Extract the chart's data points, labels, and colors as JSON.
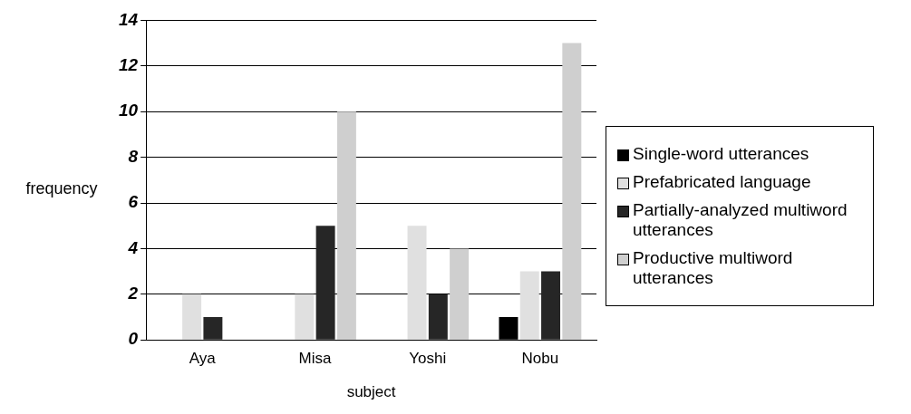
{
  "chart_data": {
    "type": "bar",
    "xlabel": "subject",
    "ylabel": "frequency",
    "categories": [
      "Aya",
      "Misa",
      "Yoshi",
      "Nobu"
    ],
    "series": [
      {
        "name": "Single-word utterances",
        "color": "#000000",
        "values": [
          0,
          0,
          0,
          1
        ]
      },
      {
        "name": "Prefabricated language",
        "color": "#e0e0e0",
        "values": [
          2,
          2,
          5,
          3
        ]
      },
      {
        "name": "Partially-analyzed multiword utterances",
        "color": "#262626",
        "values": [
          1,
          5,
          2,
          3
        ]
      },
      {
        "name": "Productive multiword utterances",
        "color": "#cfcfcf",
        "values": [
          0,
          10,
          4,
          13
        ]
      }
    ],
    "ylim": [
      0,
      14
    ],
    "yticks": [
      0,
      2,
      4,
      6,
      8,
      10,
      12,
      14
    ],
    "grid": "y",
    "legend": "right"
  }
}
